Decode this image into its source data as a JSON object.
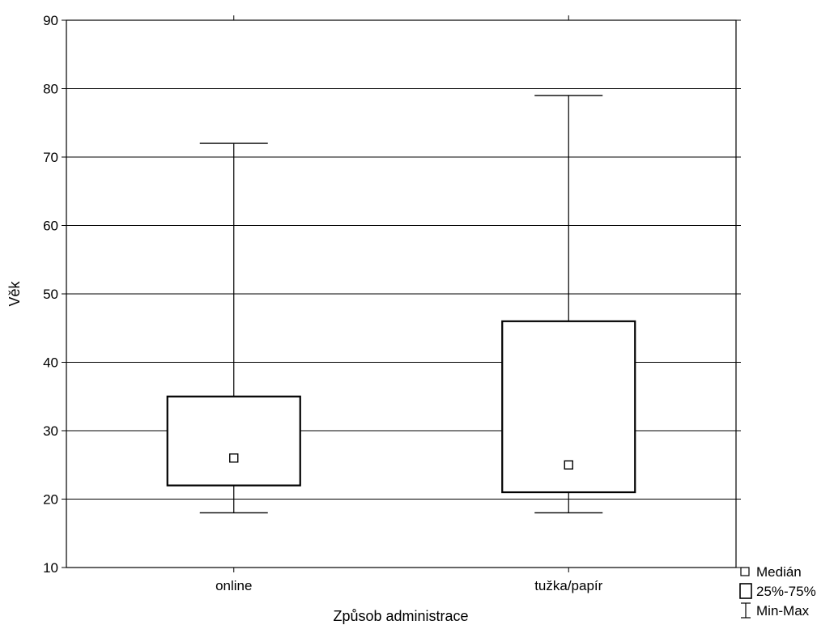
{
  "chart_data": {
    "type": "boxplot",
    "xlabel": "Způsob administrace",
    "ylabel": "Věk",
    "ylim": [
      10,
      90
    ],
    "yticks": [
      10,
      20,
      30,
      40,
      50,
      60,
      70,
      80,
      90
    ],
    "grid": true,
    "legend_position": "bottom-right",
    "categories": [
      "online",
      "tužka/papír"
    ],
    "boxes": [
      {
        "category": "online",
        "min": 18,
        "q1": 22,
        "median": 26,
        "q3": 35,
        "max": 72
      },
      {
        "category": "tužka/papír",
        "min": 18,
        "q1": 21,
        "median": 25,
        "q3": 46,
        "max": 79
      }
    ],
    "legend": [
      {
        "symbol": "small-square",
        "label": "Medián"
      },
      {
        "symbol": "box",
        "label": "25%-75%"
      },
      {
        "symbol": "whisker",
        "label": "Min-Max"
      }
    ]
  }
}
